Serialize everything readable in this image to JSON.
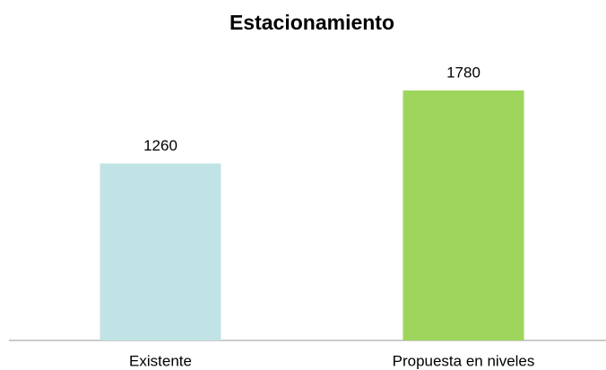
{
  "chart_data": {
    "type": "bar",
    "title": "Estacionamiento",
    "categories": [
      "Existente",
      "Propuesta en niveles"
    ],
    "values": [
      1260,
      1780
    ],
    "colors": [
      "#c1e3e5",
      "#9ed65d"
    ]
  }
}
